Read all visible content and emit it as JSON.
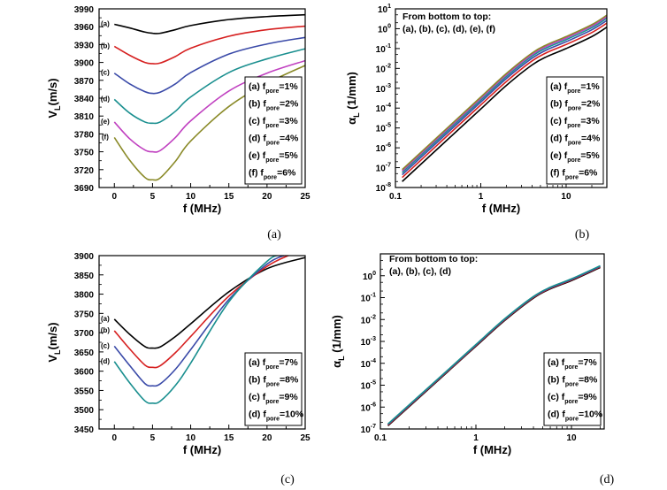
{
  "chart_data": [
    {
      "type": "line",
      "panel_label": "(a)",
      "xlabel": "f (MHz)",
      "ylabel": "V",
      "ylabel_sub": "L",
      "ylabel_tail": "(m/s)",
      "xlim": [
        -2,
        25
      ],
      "ylim": [
        3690,
        3990
      ],
      "xticks": [
        0,
        5,
        10,
        15,
        20,
        25
      ],
      "yticks": [
        3690,
        3720,
        3750,
        3780,
        3810,
        3840,
        3870,
        3900,
        3930,
        3960,
        3990
      ],
      "legend_position": "bottom-right",
      "series": [
        {
          "label": "(a)",
          "legend": "(a) f",
          "legend_sub": "pore",
          "legend_tail": "=1%",
          "color": "#000000",
          "x": [
            0,
            2,
            4,
            5,
            6,
            8,
            10,
            15,
            20,
            25
          ],
          "y": [
            3964,
            3958,
            3951,
            3949,
            3949,
            3955,
            3962,
            3972,
            3977,
            3980
          ]
        },
        {
          "label": "(b)",
          "legend": "(b) f",
          "legend_sub": "pore",
          "legend_tail": "=2%",
          "color": "#d62020",
          "x": [
            0,
            2,
            4,
            5,
            6,
            8,
            10,
            15,
            20,
            25
          ],
          "y": [
            3927,
            3912,
            3900,
            3898,
            3899,
            3910,
            3924,
            3944,
            3955,
            3961
          ]
        },
        {
          "label": "(c)",
          "legend": "(c) f",
          "legend_sub": "pore",
          "legend_tail": "=3%",
          "color": "#3a4aa8",
          "x": [
            0,
            2,
            4,
            5,
            6,
            8,
            10,
            15,
            20,
            25
          ],
          "y": [
            3882,
            3864,
            3851,
            3848,
            3850,
            3864,
            3883,
            3914,
            3931,
            3942
          ]
        },
        {
          "label": "(d)",
          "legend": "(d) f",
          "legend_sub": "pore",
          "legend_tail": "=4%",
          "color": "#1a8f8f",
          "x": [
            0,
            2,
            4,
            5,
            6,
            8,
            10,
            15,
            20,
            25
          ],
          "y": [
            3838,
            3815,
            3800,
            3798,
            3800,
            3818,
            3842,
            3883,
            3906,
            3923
          ]
        },
        {
          "label": "(e)",
          "legend": "(e) f",
          "legend_sub": "pore",
          "legend_tail": "=5%",
          "color": "#c040c0",
          "x": [
            0,
            2,
            4,
            5,
            6,
            8,
            10,
            15,
            20,
            25
          ],
          "y": [
            3800,
            3772,
            3753,
            3750,
            3752,
            3774,
            3802,
            3852,
            3882,
            3903
          ]
        },
        {
          "label": "(f)",
          "legend": "(f) f",
          "legend_sub": "pore",
          "legend_tail": "=6%",
          "color": "#8a8a28",
          "x": [
            0,
            2,
            4,
            5,
            6,
            8,
            10,
            15,
            20,
            25
          ],
          "y": [
            3774,
            3736,
            3707,
            3703,
            3706,
            3734,
            3768,
            3826,
            3865,
            3895
          ]
        }
      ]
    },
    {
      "type": "line",
      "panel_label": "(b)",
      "xlabel": "f (MHz)",
      "ylabel": "α",
      "ylabel_sub": "L",
      "ylabel_tail": " (1/mm)",
      "xscale": "log",
      "yscale": "log",
      "xlim": [
        0.1,
        30
      ],
      "ylim": [
        1e-08,
        10
      ],
      "xticks": [
        0.1,
        1,
        10
      ],
      "xtick_labels": [
        "0.1",
        "1",
        "10"
      ],
      "yticks": [
        1e-08,
        1e-07,
        1e-06,
        1e-05,
        0.0001,
        0.001,
        0.01,
        0.1,
        1,
        10
      ],
      "ytick_exponents": [
        "-8",
        "-7",
        "-6",
        "-5",
        "-4",
        "-3",
        "-2",
        "-1",
        "0",
        "1"
      ],
      "annotation_line1": "From bottom to top:",
      "annotation_line2": "(a), (b), (c), (d), (e), (f)",
      "legend_position": "bottom-right",
      "series": [
        {
          "legend": "(a) f",
          "legend_sub": "pore",
          "legend_tail": "=1%",
          "color": "#000000",
          "x": [
            0.12,
            0.5,
            1,
            2,
            4,
            6,
            10,
            20,
            30
          ],
          "y": [
            2e-08,
            5.8e-06,
            9e-05,
            0.0014,
            0.015,
            0.04,
            0.1,
            0.4,
            1.2
          ]
        },
        {
          "legend": "(b) f",
          "legend_sub": "pore",
          "legend_tail": "=2%",
          "color": "#d62020",
          "x": [
            0.12,
            0.5,
            1,
            2,
            4,
            6,
            10,
            20,
            30
          ],
          "y": [
            3.2e-08,
            9.3e-06,
            0.000144,
            0.0022,
            0.024,
            0.064,
            0.16,
            0.64,
            1.9
          ]
        },
        {
          "legend": "(c) f",
          "legend_sub": "pore",
          "legend_tail": "=3%",
          "color": "#3a4aa8",
          "x": [
            0.12,
            0.5,
            1,
            2,
            4,
            6,
            10,
            20,
            30
          ],
          "y": [
            4.4e-08,
            1.28e-05,
            0.0002,
            0.0031,
            0.033,
            0.088,
            0.22,
            0.88,
            2.6
          ]
        },
        {
          "legend": "(d) f",
          "legend_sub": "pore",
          "legend_tail": "=4%",
          "color": "#1a8f8f",
          "x": [
            0.12,
            0.5,
            1,
            2,
            4,
            6,
            10,
            20,
            30
          ],
          "y": [
            5.6e-08,
            1.62e-05,
            0.00025,
            0.0039,
            0.042,
            0.112,
            0.28,
            1.12,
            3.4
          ]
        },
        {
          "legend": "(e) f",
          "legend_sub": "pore",
          "legend_tail": "=5%",
          "color": "#c040c0",
          "x": [
            0.12,
            0.5,
            1,
            2,
            4,
            6,
            10,
            20,
            30
          ],
          "y": [
            6.8e-08,
            1.97e-05,
            0.000306,
            0.0048,
            0.051,
            0.136,
            0.34,
            1.36,
            4.1
          ]
        },
        {
          "legend": "(f) f",
          "legend_sub": "pore",
          "legend_tail": "=6%",
          "color": "#8a8a28",
          "x": [
            0.12,
            0.5,
            1,
            2,
            4,
            6,
            10,
            20,
            30
          ],
          "y": [
            8e-08,
            2.3e-05,
            0.00036,
            0.0056,
            0.06,
            0.16,
            0.4,
            1.6,
            4.8
          ]
        }
      ]
    },
    {
      "type": "line",
      "panel_label": "(c)",
      "xlabel": "f (MHz)",
      "ylabel": "V",
      "ylabel_sub": "L",
      "ylabel_tail": "(m/s)",
      "xlim": [
        -2,
        25
      ],
      "ylim": [
        3450,
        3900
      ],
      "xticks": [
        0,
        5,
        10,
        15,
        20,
        25
      ],
      "yticks": [
        3450,
        3500,
        3550,
        3600,
        3650,
        3700,
        3750,
        3800,
        3850,
        3900
      ],
      "legend_position": "bottom-right",
      "series": [
        {
          "label": "(a)",
          "legend": "(a) f",
          "legend_sub": "pore",
          "legend_tail": "=7%",
          "color": "#000000",
          "x": [
            0,
            2,
            4,
            5,
            6,
            8,
            10,
            15,
            20,
            25
          ],
          "y": [
            3735,
            3696,
            3664,
            3660,
            3663,
            3690,
            3723,
            3806,
            3866,
            3895
          ]
        },
        {
          "label": "(b)",
          "legend": "(b) f",
          "legend_sub": "pore",
          "legend_tail": "=8%",
          "color": "#d62020",
          "x": [
            0,
            2,
            4,
            5,
            6,
            8,
            10,
            15,
            20,
            23
          ],
          "y": [
            3705,
            3658,
            3616,
            3610,
            3614,
            3648,
            3690,
            3795,
            3872,
            3902
          ]
        },
        {
          "label": "(c)",
          "legend": "(c) f",
          "legend_sub": "pore",
          "legend_tail": "=9%",
          "color": "#3a4aa8",
          "x": [
            0,
            2,
            4,
            5,
            6,
            8,
            10,
            15,
            20,
            22.5
          ],
          "y": [
            3665,
            3615,
            3568,
            3562,
            3567,
            3605,
            3656,
            3786,
            3878,
            3902
          ]
        },
        {
          "label": "(d)",
          "legend": "(d) f",
          "legend_sub": "pore",
          "legend_tail": "=10%",
          "color": "#1a8f8f",
          "x": [
            0,
            2,
            4,
            5,
            6,
            8,
            10,
            15,
            20,
            21.8
          ],
          "y": [
            3625,
            3570,
            3523,
            3517,
            3522,
            3563,
            3621,
            3780,
            3885,
            3902
          ]
        }
      ]
    },
    {
      "type": "line",
      "panel_label": "(d)",
      "xlabel": "f (MHz)",
      "ylabel": "α",
      "ylabel_sub": "L",
      "ylabel_tail": " (1/mm)",
      "xscale": "log",
      "yscale": "log",
      "xlim": [
        0.1,
        22
      ],
      "ylim": [
        1e-07,
        10
      ],
      "xticks": [
        0.1,
        1,
        10
      ],
      "xtick_labels": [
        "0.1",
        "1",
        "10"
      ],
      "yticks": [
        1e-07,
        1e-06,
        1e-05,
        0.0001,
        0.001,
        0.01,
        0.1,
        1
      ],
      "ytick_exponents": [
        "-7",
        "-6",
        "-5",
        "-4",
        "-3",
        "-2",
        "-1",
        "0"
      ],
      "annotation_line1": "From bottom to top:",
      "annotation_line2": "(a), (b), (c), (d)",
      "legend_position": "bottom-right",
      "series": [
        {
          "legend": "(a) f",
          "legend_sub": "pore",
          "legend_tail": "=7%",
          "color": "#000000",
          "x": [
            0.12,
            0.5,
            1,
            2,
            4,
            6,
            10,
            20
          ],
          "y": [
            1.4e-07,
            3.9e-05,
            0.0006,
            0.009,
            0.095,
            0.25,
            0.6,
            2.4
          ]
        },
        {
          "legend": "(b) f",
          "legend_sub": "pore",
          "legend_tail": "=8%",
          "color": "#d62020",
          "x": [
            0.12,
            0.5,
            1,
            2,
            4,
            6,
            10,
            20
          ],
          "y": [
            1.5e-07,
            4.15e-05,
            0.00064,
            0.0096,
            0.101,
            0.266,
            0.64,
            2.55
          ]
        },
        {
          "legend": "(c) f",
          "legend_sub": "pore",
          "legend_tail": "=9%",
          "color": "#3a4aa8",
          "x": [
            0.12,
            0.5,
            1,
            2,
            4,
            6,
            10,
            20
          ],
          "y": [
            1.6e-07,
            4.4e-05,
            0.00068,
            0.0102,
            0.107,
            0.282,
            0.68,
            2.7
          ]
        },
        {
          "legend": "(d) f",
          "legend_sub": "pore",
          "legend_tail": "=10%",
          "color": "#1a8f8f",
          "x": [
            0.12,
            0.5,
            1,
            2,
            4,
            6,
            10,
            20
          ],
          "y": [
            1.7e-07,
            4.65e-05,
            0.00072,
            0.0108,
            0.113,
            0.298,
            0.72,
            2.85
          ]
        }
      ]
    }
  ]
}
